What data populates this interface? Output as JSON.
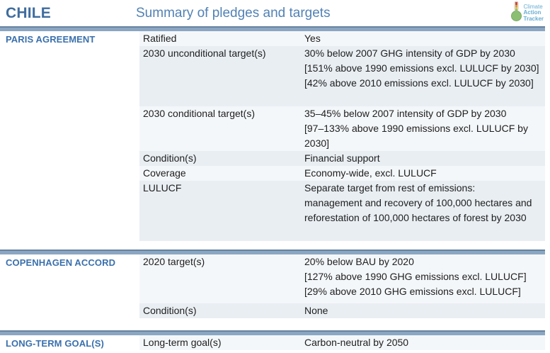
{
  "header": {
    "country": "CHILE",
    "title": "Summary of pledges and targets",
    "logo": [
      "Climate",
      "Action",
      "Tracker"
    ]
  },
  "colors": {
    "divider_bar": "#8ba6c2",
    "divider_bar_edge": "#67839f",
    "country_text": "#3f6c9e",
    "title_text": "#5282b4",
    "section_heading_text": "#3a70ac",
    "row_light": "#f4f7fa",
    "row_dark": "#e9eef3",
    "body_text": "#202020",
    "logo_text": "#69add2",
    "thermometer_bulb": "#8cbf72",
    "thermometer_top": "#c74a3c"
  },
  "sections": [
    {
      "name": "PARIS AGREEMENT",
      "rows": [
        {
          "label": "Ratified",
          "lines": [
            "Yes"
          ],
          "shade": "light"
        },
        {
          "label": "2030 unconditional target(s)",
          "lines": [
            "30% below 2007 GHG intensity of GDP by 2030",
            "[151% above 1990 emissions excl. LULUCF by 2030]",
            "[42% above 2010 emissions excl. LULUCF by 2030]"
          ],
          "shade": "dark",
          "spacer": true
        },
        {
          "label": "2030 conditional target(s)",
          "lines": [
            "35–45% below 2007 intensity of GDP by 2030",
            "[97–133% above 1990 emissions excl. LULUCF by",
            "2030]"
          ],
          "shade": "light"
        },
        {
          "label": "Condition(s)",
          "lines": [
            "Financial support"
          ],
          "shade": "dark"
        },
        {
          "label": "Coverage",
          "lines": [
            "Economy-wide, excl. LULUCF"
          ],
          "shade": "light"
        },
        {
          "label": "LULUCF",
          "lines": [
            "Separate target from rest of emissions:",
            "management and recovery of 100,000 hectares and",
            "reforestation of 100,000 hectares of forest by 2030"
          ],
          "shade": "dark",
          "spacer": true
        }
      ]
    },
    {
      "name": "COPENHAGEN ACCORD",
      "rows": [
        {
          "label": "2020 target(s)",
          "lines": [
            "20% below BAU by 2020",
            "[127% above 1990 GHG emissions excl. LULUCF]",
            "[29% above 2010 GHG emissions excl. LULUCF]"
          ],
          "shade": "light",
          "spacer_sm": true
        },
        {
          "label": "Condition(s)",
          "lines": [
            "None"
          ],
          "shade": "dark"
        }
      ]
    },
    {
      "name": "LONG-TERM GOAL(S)",
      "rows": [
        {
          "label": "Long-term goal(s)",
          "lines": [
            "Carbon-neutral by 2050"
          ],
          "shade": "light"
        }
      ]
    }
  ]
}
